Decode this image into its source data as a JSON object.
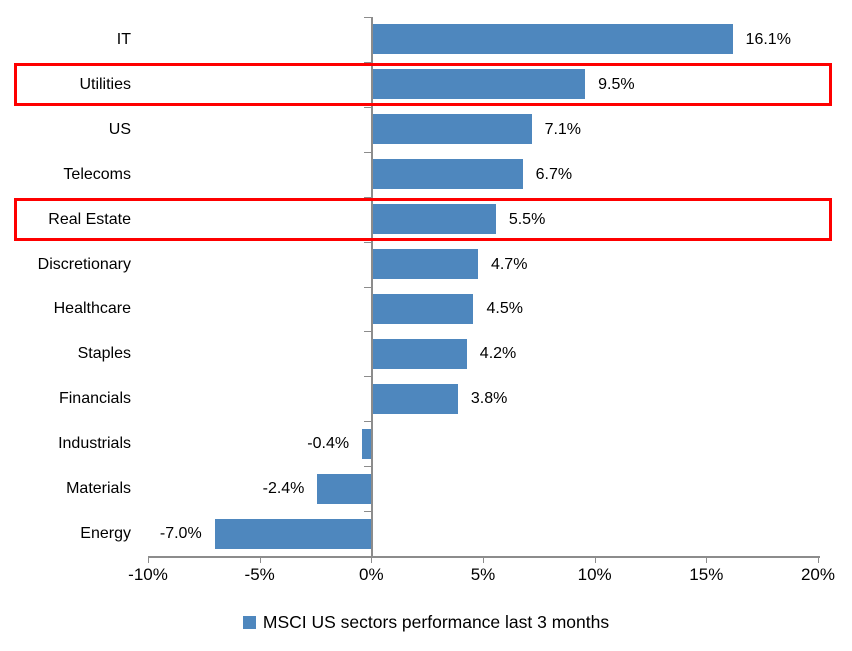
{
  "chart_data": {
    "type": "bar",
    "orientation": "horizontal",
    "title": "",
    "categories": [
      "IT",
      "Utilities",
      "US",
      "Telecoms",
      "Real Estate",
      "Discretionary",
      "Healthcare",
      "Staples",
      "Financials",
      "Industrials",
      "Materials",
      "Energy"
    ],
    "values": [
      16.1,
      9.5,
      7.1,
      6.7,
      5.5,
      4.7,
      4.5,
      4.2,
      3.8,
      -0.4,
      -2.4,
      -7.0
    ],
    "value_labels": [
      "16.1%",
      "9.5%",
      "7.1%",
      "6.7%",
      "5.5%",
      "4.7%",
      "4.5%",
      "4.2%",
      "3.8%",
      "-0.4%",
      "-2.4%",
      "-7.0%"
    ],
    "x_ticks": [
      "-10%",
      "-5%",
      "0%",
      "5%",
      "10%",
      "15%",
      "20%"
    ],
    "x_tick_values": [
      -10,
      -5,
      0,
      5,
      10,
      15,
      20
    ],
    "xlim": [
      -10,
      20
    ],
    "grid": false,
    "legend_position": "bottom",
    "legend": "MSCI US sectors performance last 3 months",
    "bar_color": "#4e87be",
    "highlight_box_color": "#fe0000",
    "axis_color": "#8c8c8c",
    "highlighted_categories": [
      "Utilities",
      "Real Estate"
    ]
  }
}
